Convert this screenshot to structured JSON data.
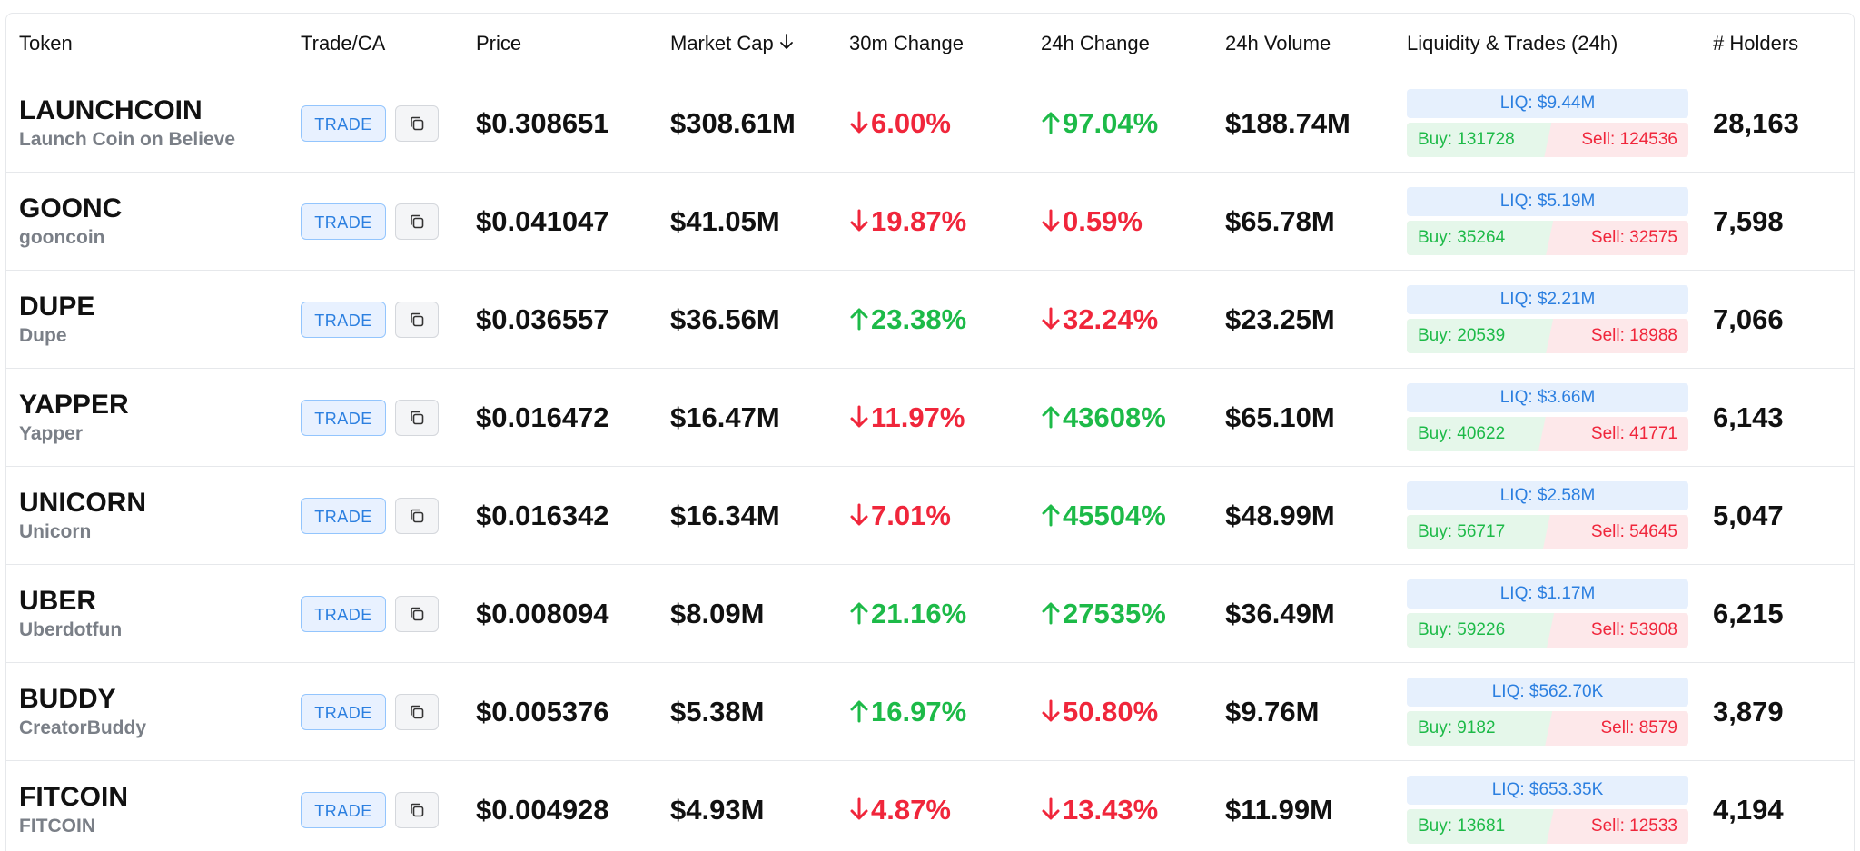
{
  "columns": [
    "Token",
    "Trade/CA",
    "Price",
    "Market Cap",
    "30m Change",
    "24h Change",
    "24h Volume",
    "Liquidity & Trades (24h)",
    "# Holders"
  ],
  "sort_icon": "arrow-down-icon",
  "trade_label": "TRADE",
  "copy_icon": "copy-icon",
  "colors": {
    "up": "#1dba48",
    "down": "#f0263b",
    "accent": "#2b7fe0"
  },
  "rows": [
    {
      "symbol": "LAUNCHCOIN",
      "name": "Launch Coin on Believe",
      "price": "$0.308651",
      "market_cap": "$308.61M",
      "change_30m": "6.00%",
      "dir_30m": "down",
      "change_24h": "97.04%",
      "dir_24h": "up",
      "volume_24h": "$188.74M",
      "liq": "LIQ: $9.44M",
      "buy": "Buy: 131728",
      "sell": "Sell: 124536",
      "buy_share": 0.514,
      "holders": "28,163"
    },
    {
      "symbol": "GOONC",
      "name": "gooncoin",
      "price": "$0.041047",
      "market_cap": "$41.05M",
      "change_30m": "19.87%",
      "dir_30m": "down",
      "change_24h": "0.59%",
      "dir_24h": "down",
      "volume_24h": "$65.78M",
      "liq": "LIQ: $5.19M",
      "buy": "Buy: 35264",
      "sell": "Sell: 32575",
      "buy_share": 0.52,
      "holders": "7,598"
    },
    {
      "symbol": "DUPE",
      "name": "Dupe",
      "price": "$0.036557",
      "market_cap": "$36.56M",
      "change_30m": "23.38%",
      "dir_30m": "up",
      "change_24h": "32.24%",
      "dir_24h": "down",
      "volume_24h": "$23.25M",
      "liq": "LIQ: $2.21M",
      "buy": "Buy: 20539",
      "sell": "Sell: 18988",
      "buy_share": 0.52,
      "holders": "7,066"
    },
    {
      "symbol": "YAPPER",
      "name": "Yapper",
      "price": "$0.016472",
      "market_cap": "$16.47M",
      "change_30m": "11.97%",
      "dir_30m": "down",
      "change_24h": "43608%",
      "dir_24h": "up",
      "volume_24h": "$65.10M",
      "liq": "LIQ: $3.66M",
      "buy": "Buy: 40622",
      "sell": "Sell: 41771",
      "buy_share": 0.493,
      "holders": "6,143"
    },
    {
      "symbol": "UNICORN",
      "name": "Unicorn",
      "price": "$0.016342",
      "market_cap": "$16.34M",
      "change_30m": "7.01%",
      "dir_30m": "down",
      "change_24h": "45504%",
      "dir_24h": "up",
      "volume_24h": "$48.99M",
      "liq": "LIQ: $2.58M",
      "buy": "Buy: 56717",
      "sell": "Sell: 54645",
      "buy_share": 0.509,
      "holders": "5,047"
    },
    {
      "symbol": "UBER",
      "name": "Uberdotfun",
      "price": "$0.008094",
      "market_cap": "$8.09M",
      "change_30m": "21.16%",
      "dir_30m": "up",
      "change_24h": "27535%",
      "dir_24h": "up",
      "volume_24h": "$36.49M",
      "liq": "LIQ: $1.17M",
      "buy": "Buy: 59226",
      "sell": "Sell: 53908",
      "buy_share": 0.523,
      "holders": "6,215"
    },
    {
      "symbol": "BUDDY",
      "name": "CreatorBuddy",
      "price": "$0.005376",
      "market_cap": "$5.38M",
      "change_30m": "16.97%",
      "dir_30m": "up",
      "change_24h": "50.80%",
      "dir_24h": "down",
      "volume_24h": "$9.76M",
      "liq": "LIQ: $562.70K",
      "buy": "Buy: 9182",
      "sell": "Sell: 8579",
      "buy_share": 0.517,
      "holders": "3,879"
    },
    {
      "symbol": "FITCOIN",
      "name": "FITCOIN",
      "price": "$0.004928",
      "market_cap": "$4.93M",
      "change_30m": "4.87%",
      "dir_30m": "down",
      "change_24h": "13.43%",
      "dir_24h": "down",
      "volume_24h": "$11.99M",
      "liq": "LIQ: $653.35K",
      "buy": "Buy: 13681",
      "sell": "Sell: 12533",
      "buy_share": 0.522,
      "holders": "4,194"
    }
  ]
}
